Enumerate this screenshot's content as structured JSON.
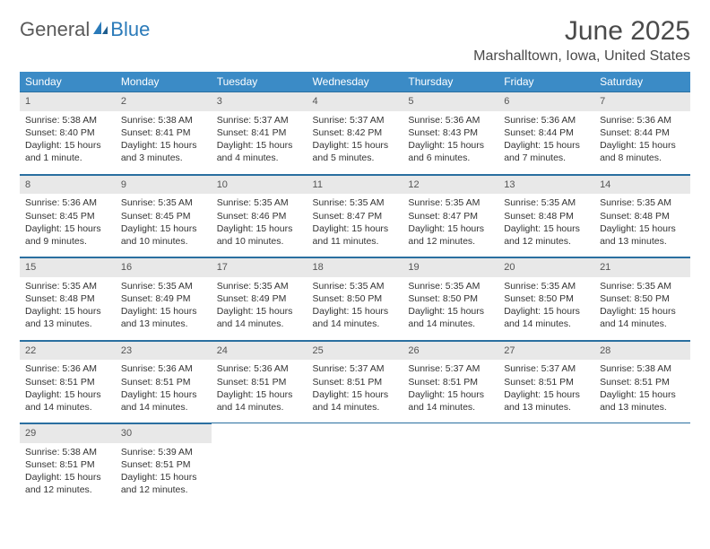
{
  "logo": {
    "text1": "General",
    "text2": "Blue"
  },
  "title": "June 2025",
  "location": "Marshalltown, Iowa, United States",
  "colors": {
    "header_bg": "#3b8bc6",
    "header_text": "#ffffff",
    "daynum_bg": "#e8e8e8",
    "border": "#2a6fa0",
    "logo_gray": "#5a5a5a",
    "logo_blue": "#2a7ab9"
  },
  "daysOfWeek": [
    "Sunday",
    "Monday",
    "Tuesday",
    "Wednesday",
    "Thursday",
    "Friday",
    "Saturday"
  ],
  "weeks": [
    [
      {
        "n": "1",
        "sr": "Sunrise: 5:38 AM",
        "ss": "Sunset: 8:40 PM",
        "dl": "Daylight: 15 hours and 1 minute."
      },
      {
        "n": "2",
        "sr": "Sunrise: 5:38 AM",
        "ss": "Sunset: 8:41 PM",
        "dl": "Daylight: 15 hours and 3 minutes."
      },
      {
        "n": "3",
        "sr": "Sunrise: 5:37 AM",
        "ss": "Sunset: 8:41 PM",
        "dl": "Daylight: 15 hours and 4 minutes."
      },
      {
        "n": "4",
        "sr": "Sunrise: 5:37 AM",
        "ss": "Sunset: 8:42 PM",
        "dl": "Daylight: 15 hours and 5 minutes."
      },
      {
        "n": "5",
        "sr": "Sunrise: 5:36 AM",
        "ss": "Sunset: 8:43 PM",
        "dl": "Daylight: 15 hours and 6 minutes."
      },
      {
        "n": "6",
        "sr": "Sunrise: 5:36 AM",
        "ss": "Sunset: 8:44 PM",
        "dl": "Daylight: 15 hours and 7 minutes."
      },
      {
        "n": "7",
        "sr": "Sunrise: 5:36 AM",
        "ss": "Sunset: 8:44 PM",
        "dl": "Daylight: 15 hours and 8 minutes."
      }
    ],
    [
      {
        "n": "8",
        "sr": "Sunrise: 5:36 AM",
        "ss": "Sunset: 8:45 PM",
        "dl": "Daylight: 15 hours and 9 minutes."
      },
      {
        "n": "9",
        "sr": "Sunrise: 5:35 AM",
        "ss": "Sunset: 8:45 PM",
        "dl": "Daylight: 15 hours and 10 minutes."
      },
      {
        "n": "10",
        "sr": "Sunrise: 5:35 AM",
        "ss": "Sunset: 8:46 PM",
        "dl": "Daylight: 15 hours and 10 minutes."
      },
      {
        "n": "11",
        "sr": "Sunrise: 5:35 AM",
        "ss": "Sunset: 8:47 PM",
        "dl": "Daylight: 15 hours and 11 minutes."
      },
      {
        "n": "12",
        "sr": "Sunrise: 5:35 AM",
        "ss": "Sunset: 8:47 PM",
        "dl": "Daylight: 15 hours and 12 minutes."
      },
      {
        "n": "13",
        "sr": "Sunrise: 5:35 AM",
        "ss": "Sunset: 8:48 PM",
        "dl": "Daylight: 15 hours and 12 minutes."
      },
      {
        "n": "14",
        "sr": "Sunrise: 5:35 AM",
        "ss": "Sunset: 8:48 PM",
        "dl": "Daylight: 15 hours and 13 minutes."
      }
    ],
    [
      {
        "n": "15",
        "sr": "Sunrise: 5:35 AM",
        "ss": "Sunset: 8:48 PM",
        "dl": "Daylight: 15 hours and 13 minutes."
      },
      {
        "n": "16",
        "sr": "Sunrise: 5:35 AM",
        "ss": "Sunset: 8:49 PM",
        "dl": "Daylight: 15 hours and 13 minutes."
      },
      {
        "n": "17",
        "sr": "Sunrise: 5:35 AM",
        "ss": "Sunset: 8:49 PM",
        "dl": "Daylight: 15 hours and 14 minutes."
      },
      {
        "n": "18",
        "sr": "Sunrise: 5:35 AM",
        "ss": "Sunset: 8:50 PM",
        "dl": "Daylight: 15 hours and 14 minutes."
      },
      {
        "n": "19",
        "sr": "Sunrise: 5:35 AM",
        "ss": "Sunset: 8:50 PM",
        "dl": "Daylight: 15 hours and 14 minutes."
      },
      {
        "n": "20",
        "sr": "Sunrise: 5:35 AM",
        "ss": "Sunset: 8:50 PM",
        "dl": "Daylight: 15 hours and 14 minutes."
      },
      {
        "n": "21",
        "sr": "Sunrise: 5:35 AM",
        "ss": "Sunset: 8:50 PM",
        "dl": "Daylight: 15 hours and 14 minutes."
      }
    ],
    [
      {
        "n": "22",
        "sr": "Sunrise: 5:36 AM",
        "ss": "Sunset: 8:51 PM",
        "dl": "Daylight: 15 hours and 14 minutes."
      },
      {
        "n": "23",
        "sr": "Sunrise: 5:36 AM",
        "ss": "Sunset: 8:51 PM",
        "dl": "Daylight: 15 hours and 14 minutes."
      },
      {
        "n": "24",
        "sr": "Sunrise: 5:36 AM",
        "ss": "Sunset: 8:51 PM",
        "dl": "Daylight: 15 hours and 14 minutes."
      },
      {
        "n": "25",
        "sr": "Sunrise: 5:37 AM",
        "ss": "Sunset: 8:51 PM",
        "dl": "Daylight: 15 hours and 14 minutes."
      },
      {
        "n": "26",
        "sr": "Sunrise: 5:37 AM",
        "ss": "Sunset: 8:51 PM",
        "dl": "Daylight: 15 hours and 14 minutes."
      },
      {
        "n": "27",
        "sr": "Sunrise: 5:37 AM",
        "ss": "Sunset: 8:51 PM",
        "dl": "Daylight: 15 hours and 13 minutes."
      },
      {
        "n": "28",
        "sr": "Sunrise: 5:38 AM",
        "ss": "Sunset: 8:51 PM",
        "dl": "Daylight: 15 hours and 13 minutes."
      }
    ],
    [
      {
        "n": "29",
        "sr": "Sunrise: 5:38 AM",
        "ss": "Sunset: 8:51 PM",
        "dl": "Daylight: 15 hours and 12 minutes."
      },
      {
        "n": "30",
        "sr": "Sunrise: 5:39 AM",
        "ss": "Sunset: 8:51 PM",
        "dl": "Daylight: 15 hours and 12 minutes."
      },
      null,
      null,
      null,
      null,
      null
    ]
  ]
}
